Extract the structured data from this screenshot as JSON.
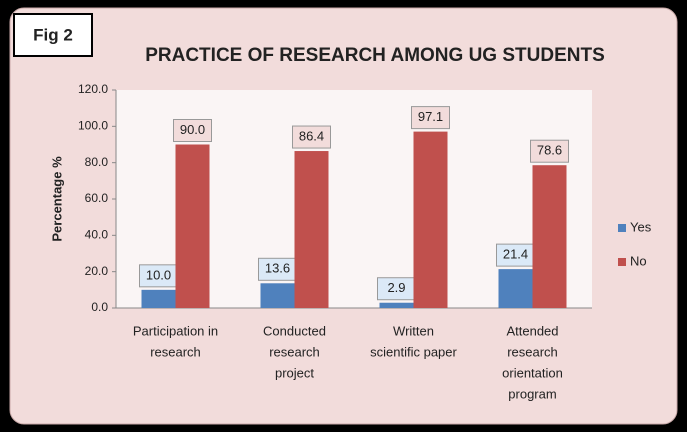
{
  "figure_label": "Fig 2",
  "chart_data": {
    "type": "bar",
    "title": "PRACTICE OF RESEARCH AMONG UG STUDENTS",
    "y_label": "Percentage %",
    "categories": [
      [
        "Participation in",
        "research"
      ],
      [
        "Conducted",
        "research",
        "project"
      ],
      [
        "Written",
        "scientific paper"
      ],
      [
        "Attended",
        "research",
        "orientation",
        "program"
      ]
    ],
    "series": [
      {
        "name": "Yes",
        "color": "#4f81bd",
        "values": [
          10.0,
          13.6,
          2.9,
          21.4
        ],
        "value_labels": [
          "10.0",
          "13.6",
          "2.9",
          "21.4"
        ]
      },
      {
        "name": "No",
        "color": "#c0504d",
        "values": [
          90.0,
          86.4,
          97.1,
          78.6
        ],
        "value_labels": [
          "90.0",
          "86.4",
          "97.1",
          "78.6"
        ]
      }
    ],
    "ylim": [
      0,
      120
    ],
    "yticks": [
      {
        "value": 0,
        "label": "0.0"
      },
      {
        "value": 20,
        "label": "20.0"
      },
      {
        "value": 40,
        "label": "40.0"
      },
      {
        "value": 60,
        "label": "60.0"
      },
      {
        "value": 80,
        "label": "80.0"
      },
      {
        "value": 100,
        "label": "100.0"
      },
      {
        "value": 120,
        "label": "120.0"
      }
    ],
    "grid": false,
    "legend": "right"
  }
}
